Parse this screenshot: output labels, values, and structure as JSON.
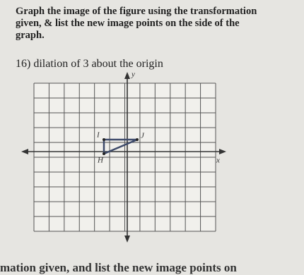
{
  "instructions": "Graph the image of the figure using the transformation given, & list the new image points on the side of the graph.",
  "problem": {
    "number": "16)",
    "text": "dilation of 3 about the origin"
  },
  "graph": {
    "y_axis_label": "y",
    "x_axis_label": "x",
    "points": [
      "I",
      "J",
      "H"
    ]
  },
  "footer_text": "mation given, and list the new image points on"
}
